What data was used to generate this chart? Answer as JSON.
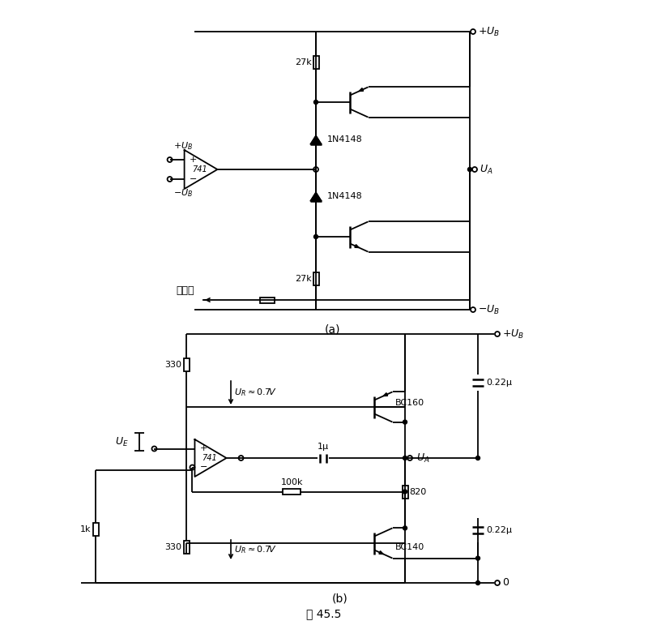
{
  "title": "图 45.5",
  "label_a": "(a)",
  "label_b": "(b)",
  "bg_color": "#ffffff",
  "line_color": "#000000",
  "font_size": 9,
  "fig_width": 8.0,
  "fig_height": 7.87
}
